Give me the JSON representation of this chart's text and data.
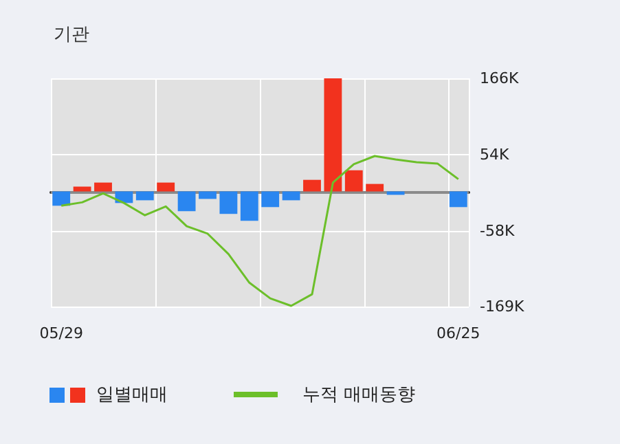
{
  "chart_data": {
    "type": "bar",
    "title": "기관",
    "categories": [
      "05/29",
      null,
      null,
      null,
      null,
      null,
      null,
      null,
      null,
      null,
      null,
      null,
      null,
      null,
      null,
      null,
      null,
      null,
      null,
      "06/25"
    ],
    "series": [
      {
        "name": "일별매매",
        "colors": [
          "#2a86f0",
          "#f2321e",
          "#f2321e",
          "#2a86f0",
          "#2a86f0",
          "#f2321e",
          "#2a86f0",
          "#2a86f0",
          "#2a86f0",
          "#2a86f0",
          "#2a86f0",
          "#2a86f0",
          "#f2321e",
          "#f2321e",
          "#f2321e",
          "#f2321e",
          "#2a86f0",
          "#2a86f0",
          "#2a86f0",
          "#2a86f0"
        ],
        "values": [
          -21000,
          7000,
          13000,
          -17000,
          -13000,
          13000,
          -29000,
          -11000,
          -33000,
          -43000,
          -23000,
          -13000,
          17000,
          166000,
          31000,
          11000,
          -5000,
          0,
          0,
          -23000
        ]
      },
      {
        "name": "누적 매매동향",
        "type": "line",
        "color": "#6cbf2a",
        "values": [
          -21000,
          -16000,
          -3000,
          -17000,
          -35000,
          -22000,
          -51000,
          -62000,
          -92000,
          -134000,
          -157000,
          -168000,
          -151000,
          13000,
          40000,
          52000,
          47000,
          43000,
          41000,
          18000
        ]
      }
    ],
    "ylim": [
      -169000,
      166000
    ],
    "yticks": [
      {
        "value": -169000,
        "label": "-169K"
      },
      {
        "value": -58000,
        "label": "-58K"
      },
      {
        "value": 54000,
        "label": "54K"
      },
      {
        "value": 166000,
        "label": "166K"
      }
    ],
    "ref_lines": [
      {
        "axis": "y",
        "value": 0,
        "color": "#8a8a8a"
      }
    ],
    "grid": true,
    "legend": "bottom",
    "marker": "none",
    "line_style": "solid"
  }
}
